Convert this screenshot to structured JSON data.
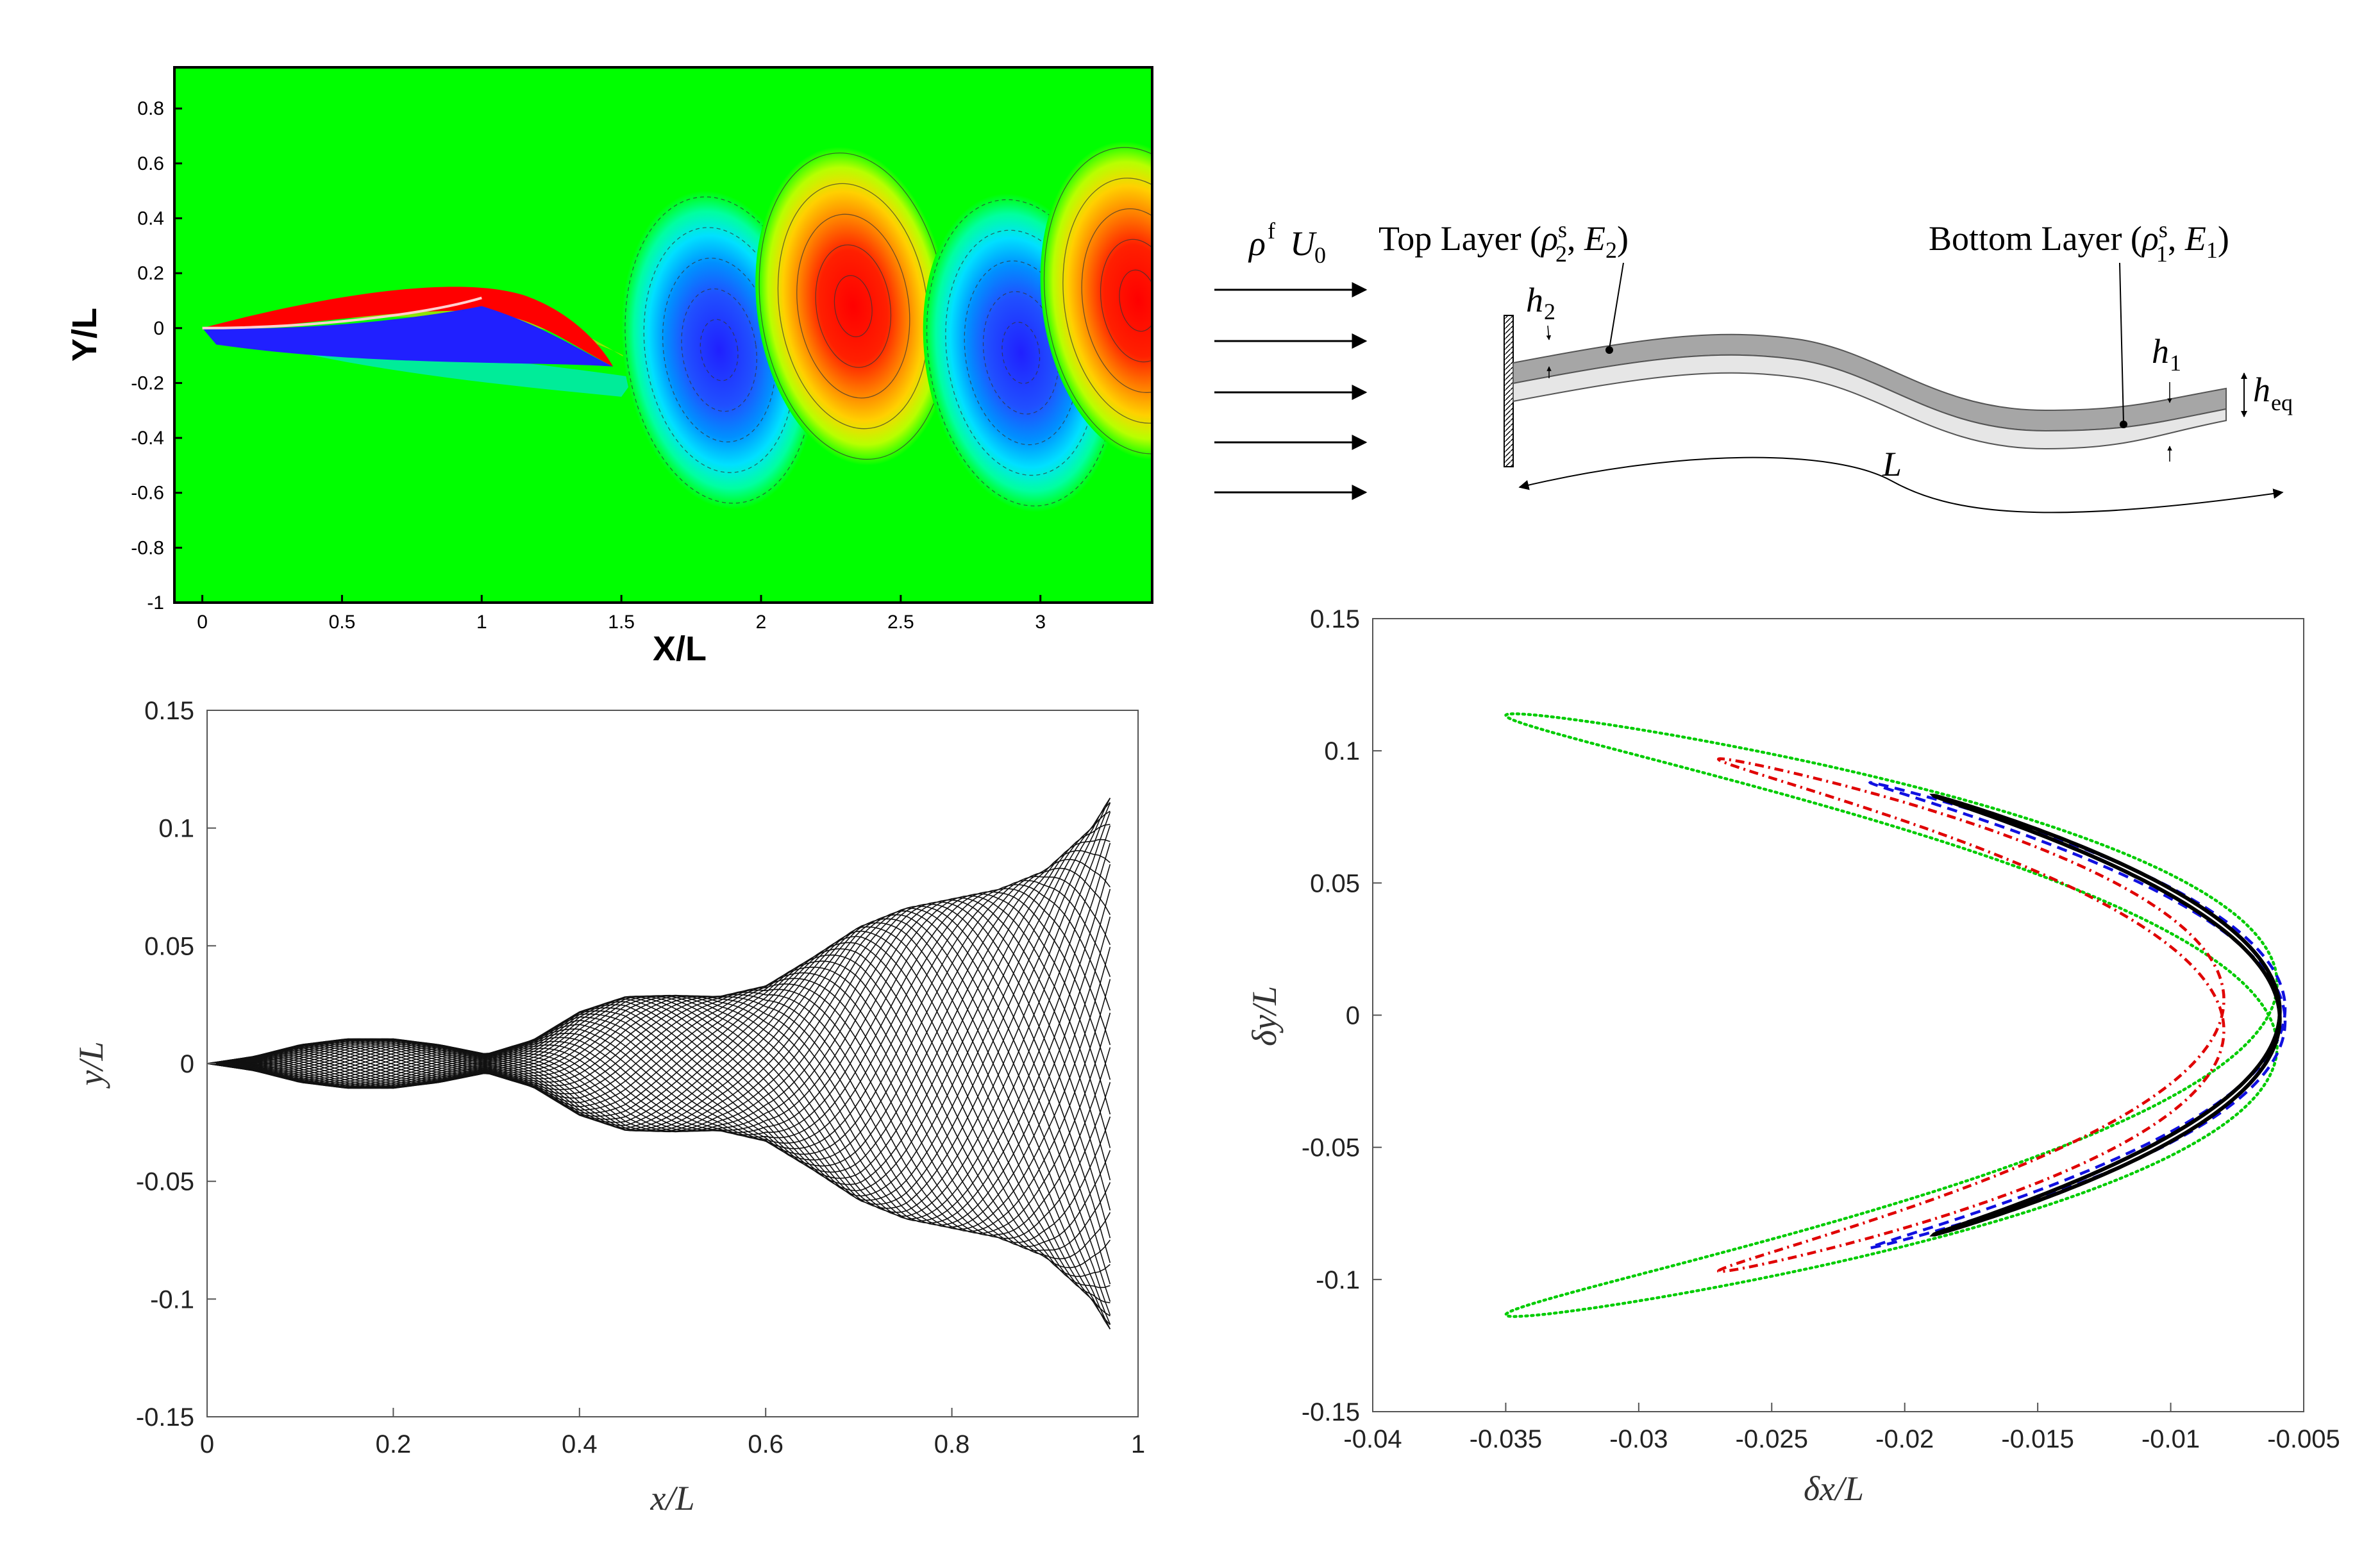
{
  "chart_data": [
    {
      "type": "heatmap",
      "xlabel": "X/L",
      "ylabel": "Y/L",
      "xlim": [
        -0.1,
        3.4
      ],
      "ylim": [
        -1,
        0.95
      ],
      "x_ticks": [
        "0",
        "0.5",
        "1",
        "1.5",
        "2",
        "2.5",
        "3"
      ],
      "y_ticks": [
        "0.8",
        "0.6",
        "0.4",
        "0.2",
        "0",
        "-0.2",
        "-0.4",
        "-0.6",
        "-0.8",
        "-1"
      ],
      "background_color": "#00ff00",
      "vortices": [
        {
          "x": 1.85,
          "y": -0.08,
          "sign": "negative"
        },
        {
          "x": 2.33,
          "y": 0.08,
          "sign": "positive"
        },
        {
          "x": 2.93,
          "y": -0.09,
          "sign": "negative"
        },
        {
          "x": 3.35,
          "y": 0.1,
          "sign": "positive"
        }
      ],
      "colors": {
        "positive_core": "#ff0000",
        "negative_core": "#2020ff",
        "mid_positive": "#ffb000",
        "mid_negative": "#00c8ff"
      }
    },
    {
      "type": "diagram",
      "flow_label_rho": "ρ",
      "flow_label_sup": "f",
      "flow_label_U": "U",
      "flow_label_sub": "0",
      "top_layer": {
        "text": "Top Layer (",
        "rho": "ρ",
        "sup": "s",
        "sub": "2",
        "mid": ", ",
        "E": "E",
        "Esub": "2",
        "close": ")"
      },
      "bottom_layer": {
        "text": "Bottom Layer (",
        "rho": "ρ",
        "sup": "s",
        "sub": "1",
        "mid": ", ",
        "E": "E",
        "Esub": "1",
        "close": ")"
      },
      "h2_label": {
        "h": "h",
        "sub": "2"
      },
      "h1_label": {
        "h": "h",
        "sub": "1"
      },
      "heq_label": {
        "h": "h",
        "sub": "eq"
      },
      "length_label": "L"
    },
    {
      "type": "line",
      "xlabel": "x/L",
      "ylabel": "y/L",
      "xlim": [
        0,
        1
      ],
      "ylim": [
        -0.15,
        0.15
      ],
      "x_ticks": [
        "0",
        "0.2",
        "0.4",
        "0.6",
        "0.8",
        "1"
      ],
      "y_ticks": [
        "0.15",
        "0.1",
        "0.05",
        "0",
        "-0.05",
        "-0.1",
        "-0.15"
      ],
      "n_snapshots": 48,
      "envelope": {
        "x": [
          0,
          0.05,
          0.1,
          0.15,
          0.2,
          0.25,
          0.3,
          0.35,
          0.4,
          0.45,
          0.5,
          0.55,
          0.6,
          0.65,
          0.7,
          0.75,
          0.8,
          0.85,
          0.9,
          0.95,
          0.97
        ],
        "amplitude": [
          0,
          0.003,
          0.008,
          0.0105,
          0.0105,
          0.008,
          0.004,
          0.01,
          0.022,
          0.0285,
          0.029,
          0.0285,
          0.033,
          0.045,
          0.058,
          0.066,
          0.07,
          0.074,
          0.082,
          0.1,
          0.113
        ]
      }
    },
    {
      "type": "line",
      "xlabel": "δx/L",
      "ylabel": "δy/L",
      "xlim": [
        -0.04,
        -0.005
      ],
      "ylim": [
        -0.15,
        0.15
      ],
      "x_ticks": [
        "-0.04",
        "-0.035",
        "-0.03",
        "-0.025",
        "-0.02",
        "-0.015",
        "-0.01",
        "-0.005"
      ],
      "y_ticks": [
        "0.15",
        "0.1",
        "0.05",
        "0",
        "-0.05",
        "-0.1",
        "-0.15"
      ],
      "series": [
        {
          "color": "#00cc00",
          "style": "dotted",
          "Ax": 0.0145,
          "cx": -0.0205,
          "Ay": 0.114,
          "phi": 0.21
        },
        {
          "color": "#e00000",
          "style": "dashdot",
          "Ax": 0.0095,
          "cx": -0.0175,
          "Ay": 0.097,
          "phi": 0.12
        },
        {
          "color": "#1010e0",
          "style": "dashed",
          "Ax": 0.0078,
          "cx": -0.0135,
          "Ay": 0.088,
          "phi": 0.055
        },
        {
          "color": "#000000",
          "style": "solid",
          "Ax": 0.0065,
          "cx": -0.0124,
          "Ay": 0.083,
          "phi": 0.035
        }
      ]
    }
  ]
}
